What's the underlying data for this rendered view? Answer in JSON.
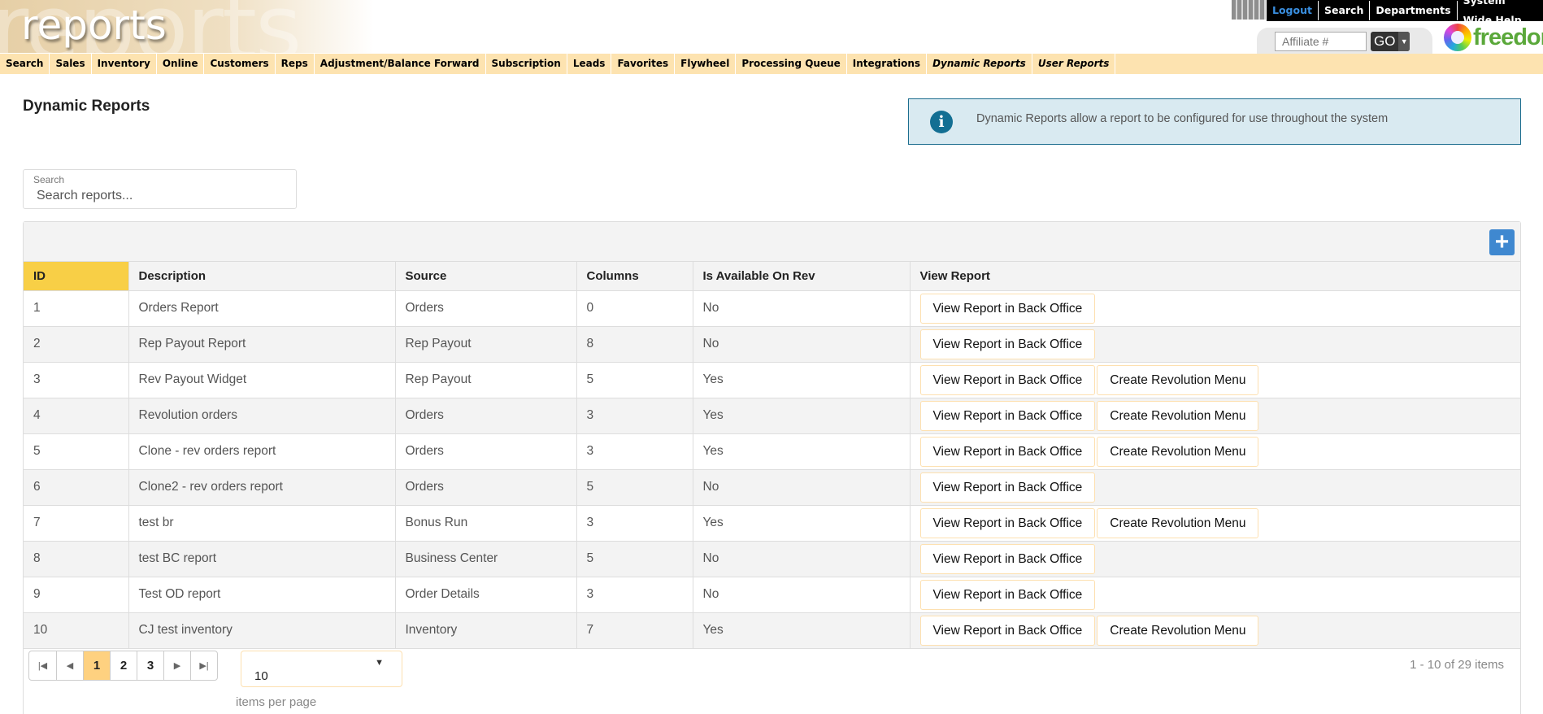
{
  "header": {
    "banner_text": "reports",
    "top_links": [
      "Logout",
      "Search",
      "Departments",
      "System Wide Help"
    ],
    "affiliate_placeholder": "Affiliate #",
    "go_label": "GO",
    "logo_text": "freedom"
  },
  "nav": {
    "items": [
      {
        "label": "Search"
      },
      {
        "label": "Sales"
      },
      {
        "label": "Inventory"
      },
      {
        "label": "Online"
      },
      {
        "label": "Customers"
      },
      {
        "label": "Reps"
      },
      {
        "label": "Adjustment/Balance Forward"
      },
      {
        "label": "Subscription"
      },
      {
        "label": "Leads"
      },
      {
        "label": "Favorites"
      },
      {
        "label": "Flywheel"
      },
      {
        "label": "Processing Queue"
      },
      {
        "label": "Integrations"
      },
      {
        "label": "Dynamic Reports"
      },
      {
        "label": "User Reports"
      }
    ]
  },
  "page": {
    "title": "Dynamic Reports",
    "info": "Dynamic Reports allow a report to be configured for use throughout the system",
    "search_label": "Search",
    "search_placeholder": "Search reports..."
  },
  "table": {
    "columns": [
      "ID",
      "Description",
      "Source",
      "Columns",
      "Is Available On Rev",
      "View Report"
    ],
    "view_label": "View Report in Back Office",
    "create_label": "Create Revolution Menu",
    "rows": [
      {
        "id": "1",
        "description": "Orders Report",
        "source": "Orders",
        "columns": "0",
        "available": "No"
      },
      {
        "id": "2",
        "description": "Rep Payout Report",
        "source": "Rep Payout",
        "columns": "8",
        "available": "No"
      },
      {
        "id": "3",
        "description": "Rev Payout Widget",
        "source": "Rep Payout",
        "columns": "5",
        "available": "Yes"
      },
      {
        "id": "4",
        "description": "Revolution orders",
        "source": "Orders",
        "columns": "3",
        "available": "Yes"
      },
      {
        "id": "5",
        "description": "Clone - rev orders report",
        "source": "Orders",
        "columns": "3",
        "available": "Yes"
      },
      {
        "id": "6",
        "description": "Clone2 - rev orders report",
        "source": "Orders",
        "columns": "5",
        "available": "No"
      },
      {
        "id": "7",
        "description": "test br",
        "source": "Bonus Run",
        "columns": "3",
        "available": "Yes"
      },
      {
        "id": "8",
        "description": "test BC report",
        "source": "Business Center",
        "columns": "5",
        "available": "No"
      },
      {
        "id": "9",
        "description": "Test OD report",
        "source": "Order Details",
        "columns": "3",
        "available": "No"
      },
      {
        "id": "10",
        "description": "CJ test inventory",
        "source": "Inventory",
        "columns": "7",
        "available": "Yes"
      }
    ]
  },
  "pager": {
    "pages": [
      "1",
      "2",
      "3"
    ],
    "current": "1",
    "page_size": "10",
    "items_per_page_label": "items per page",
    "summary": "1 - 10 of 29 items"
  }
}
